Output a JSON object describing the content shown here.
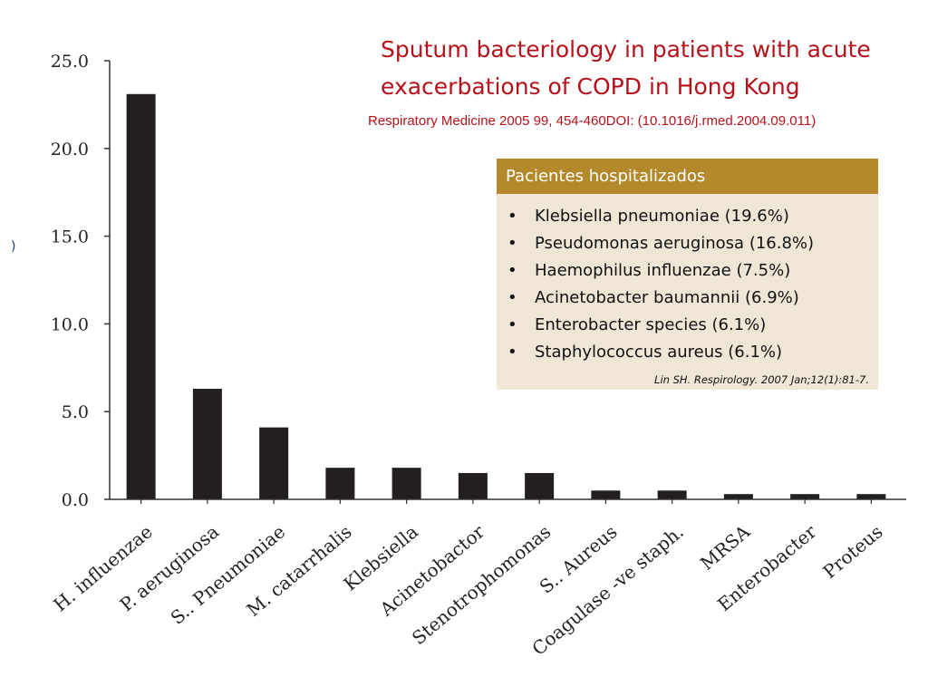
{
  "title_lines": [
    "Sputum bacteriology in patients with acute",
    "exacerbations of COPD in Hong Kong"
  ],
  "subtitle": "Respiratory Medicine 2005 99, 454-460DOI: (10.1016/j.rmed.2004.09.011)",
  "left_mark": ")",
  "info_box": {
    "header": "Pacientes hospitalizados",
    "items": [
      "Klebsiella pneumoniae (19.6%)",
      "Pseudomonas aeruginosa (16.8%)",
      "Haemophilus influenzae (7.5%)",
      "Acinetobacter baumannii (6.9%)",
      "Enterobacter species (6.1%)",
      "Staphylococcus aureus (6.1%)"
    ],
    "bullet": "•",
    "citation": "Lin SH. Respirology. 2007 Jan;12(1):81-7.",
    "header_color": "#b3892c",
    "background_color": "#efe6d6"
  },
  "colors": {
    "bar": "#231f20",
    "title": "#b5121b"
  },
  "chart_data": {
    "type": "bar",
    "categories": [
      "H. influenzae",
      "P. aeruginosa",
      "S.. Pneumoniae",
      "M. catarrhalis",
      "Klebsiella",
      "Acinetobactor",
      "Stenotrophomonas",
      "S.. Aureus",
      "Coagulase -ve staph.",
      "MRSA",
      "Enterobacter",
      "Proteus"
    ],
    "values": [
      23.1,
      6.3,
      4.1,
      1.8,
      1.8,
      1.5,
      1.5,
      0.5,
      0.5,
      0.3,
      0.3,
      0.3
    ],
    "yticks": [
      "0.0",
      "5.0",
      "10.0",
      "15.0",
      "20.0",
      "25.0"
    ],
    "ylim": [
      0,
      25
    ],
    "xlabel": "",
    "ylabel": "",
    "grid": false,
    "legend": "none"
  }
}
